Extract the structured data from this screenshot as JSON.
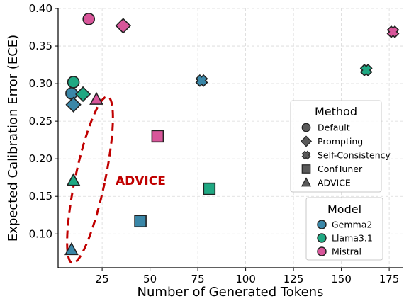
{
  "chart_data": {
    "type": "scatter",
    "xlabel": "Number of Generated Tokens",
    "ylabel": "Expected Calibration Error (ECE)",
    "xlim": [
      2,
      182
    ],
    "ylim": [
      0.055,
      0.4
    ],
    "xticks": [
      25,
      50,
      75,
      100,
      125,
      150,
      175
    ],
    "yticks": [
      0.1,
      0.15,
      0.2,
      0.25,
      0.3,
      0.35,
      0.4
    ],
    "grid": true,
    "colors": {
      "Gemma2": "#3a87a8",
      "Llama3.1": "#1fa882",
      "Mistral": "#d8569a"
    },
    "annotation": {
      "text": "ADVICE",
      "color": "#c00000"
    },
    "points": [
      {
        "model": "Mistral",
        "method": "Default",
        "x": 18,
        "y": 0.386
      },
      {
        "model": "Mistral",
        "method": "Prompting",
        "x": 36,
        "y": 0.377
      },
      {
        "model": "Mistral",
        "method": "Self-Consistency",
        "x": 177,
        "y": 0.369
      },
      {
        "model": "Llama3.1",
        "method": "Self-Consistency",
        "x": 163,
        "y": 0.318
      },
      {
        "model": "Gemma2",
        "method": "Self-Consistency",
        "x": 77,
        "y": 0.304
      },
      {
        "model": "Llama3.1",
        "method": "Default",
        "x": 10,
        "y": 0.302
      },
      {
        "model": "Gemma2",
        "method": "Default",
        "x": 9,
        "y": 0.287
      },
      {
        "model": "Llama3.1",
        "method": "Prompting",
        "x": 15,
        "y": 0.286
      },
      {
        "model": "Gemma2",
        "method": "Prompting",
        "x": 10,
        "y": 0.272
      },
      {
        "model": "Mistral",
        "method": "ADVICE",
        "x": 22,
        "y": 0.279
      },
      {
        "model": "Mistral",
        "method": "ConfTuner",
        "x": 54,
        "y": 0.23
      },
      {
        "model": "Llama3.1",
        "method": "ADVICE",
        "x": 10,
        "y": 0.171
      },
      {
        "model": "Llama3.1",
        "method": "ConfTuner",
        "x": 81,
        "y": 0.16
      },
      {
        "model": "Gemma2",
        "method": "ConfTuner",
        "x": 45,
        "y": 0.117
      },
      {
        "model": "Gemma2",
        "method": "ADVICE",
        "x": 9,
        "y": 0.079
      }
    ],
    "legends": {
      "method": {
        "title": "Method",
        "items": [
          {
            "label": "Default",
            "marker": "circle"
          },
          {
            "label": "Prompting",
            "marker": "diamond"
          },
          {
            "label": "Self-Consistency",
            "marker": "x"
          },
          {
            "label": "ConfTuner",
            "marker": "square"
          },
          {
            "label": "ADVICE",
            "marker": "triangle"
          }
        ]
      },
      "model": {
        "title": "Model",
        "items": [
          {
            "label": "Gemma2"
          },
          {
            "label": "Llama3.1"
          },
          {
            "label": "Mistral"
          }
        ]
      }
    }
  }
}
